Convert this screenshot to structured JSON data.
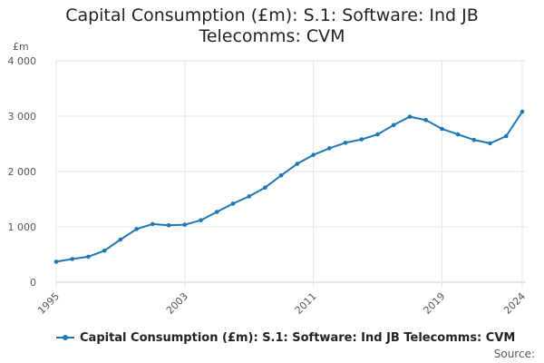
{
  "chart_data": {
    "type": "line",
    "title": "Capital Consumption (£m): S.1: Software: Ind JB Telecomms: CVM",
    "title_lines": [
      "Capital Consumption (£m): S.1: Software: Ind JB",
      "Telecomms: CVM"
    ],
    "ylabel": "£m",
    "xlabel": "",
    "ylim": [
      0,
      4000
    ],
    "xlim": [
      1995,
      2024
    ],
    "y_ticks": [
      0,
      1000,
      2000,
      3000,
      4000
    ],
    "y_tick_labels": [
      "0",
      "1 000",
      "2 000",
      "3 000",
      "4 000"
    ],
    "x_ticks": [
      1995,
      2003,
      2011,
      2019,
      2024
    ],
    "x_tick_labels": [
      "1995",
      "2003",
      "2011",
      "2019",
      "2024"
    ],
    "grid": true,
    "legend_position": "bottom",
    "series": [
      {
        "name": "Capital Consumption (£m): S.1: Software: Ind JB Telecomms: CVM",
        "color": "#1f77b4",
        "x": [
          1995,
          1996,
          1997,
          1998,
          1999,
          2000,
          2001,
          2002,
          2003,
          2004,
          2005,
          2006,
          2007,
          2008,
          2009,
          2010,
          2011,
          2012,
          2013,
          2014,
          2015,
          2016,
          2017,
          2018,
          2019,
          2020,
          2021,
          2022,
          2023,
          2024
        ],
        "values": [
          370,
          420,
          460,
          570,
          770,
          960,
          1050,
          1030,
          1040,
          1120,
          1270,
          1420,
          1550,
          1710,
          1930,
          2140,
          2300,
          2420,
          2520,
          2580,
          2670,
          2840,
          2990,
          2930,
          2770,
          2670,
          2570,
          2510,
          2640,
          3080
        ]
      }
    ]
  },
  "legend": {
    "label": "Capital Consumption (£m): S.1: Software: Ind JB Telecomms: CVM"
  },
  "source_label": "Source:"
}
